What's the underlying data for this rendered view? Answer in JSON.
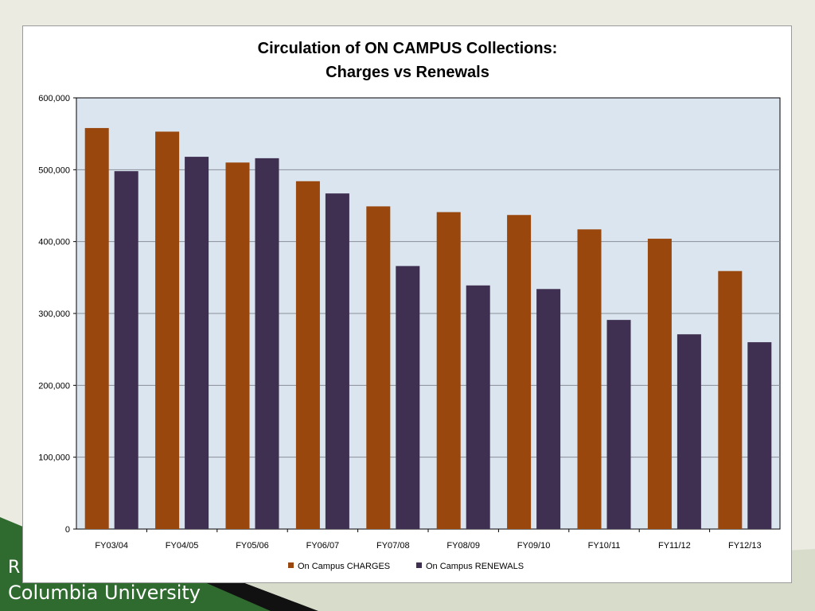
{
  "footer": {
    "line1": "R",
    "line2": "Columbia University"
  },
  "colors": {
    "charges": "#99470c",
    "renewals": "#3f3052",
    "plot_bg": "#dbe5ef",
    "gridline": "#8a8f98",
    "green_band": "#2f6b2f"
  },
  "chart_data": {
    "type": "bar",
    "title": "Circulation of ON CAMPUS Collections:",
    "subtitle": "Charges vs Renewals",
    "xlabel": "",
    "ylabel": "",
    "ylim": [
      0,
      600000
    ],
    "yticks": [
      0,
      100000,
      200000,
      300000,
      400000,
      500000,
      600000
    ],
    "ytick_labels": [
      "0",
      "100,000",
      "200,000",
      "300,000",
      "400,000",
      "500,000",
      "600,000"
    ],
    "grid": true,
    "legend_position": "bottom",
    "categories": [
      "FY03/04",
      "FY04/05",
      "FY05/06",
      "FY06/07",
      "FY07/08",
      "FY08/09",
      "FY09/10",
      "FY10/11",
      "FY11/12",
      "FY12/13"
    ],
    "series": [
      {
        "name": "On Campus CHARGES",
        "color": "#99470c",
        "values": [
          558000,
          553000,
          510000,
          484000,
          449000,
          441000,
          437000,
          417000,
          404000,
          359000
        ]
      },
      {
        "name": "On Campus RENEWALS",
        "color": "#3f3052",
        "values": [
          498000,
          518000,
          516000,
          467000,
          366000,
          339000,
          334000,
          291000,
          271000,
          260000
        ]
      }
    ]
  }
}
